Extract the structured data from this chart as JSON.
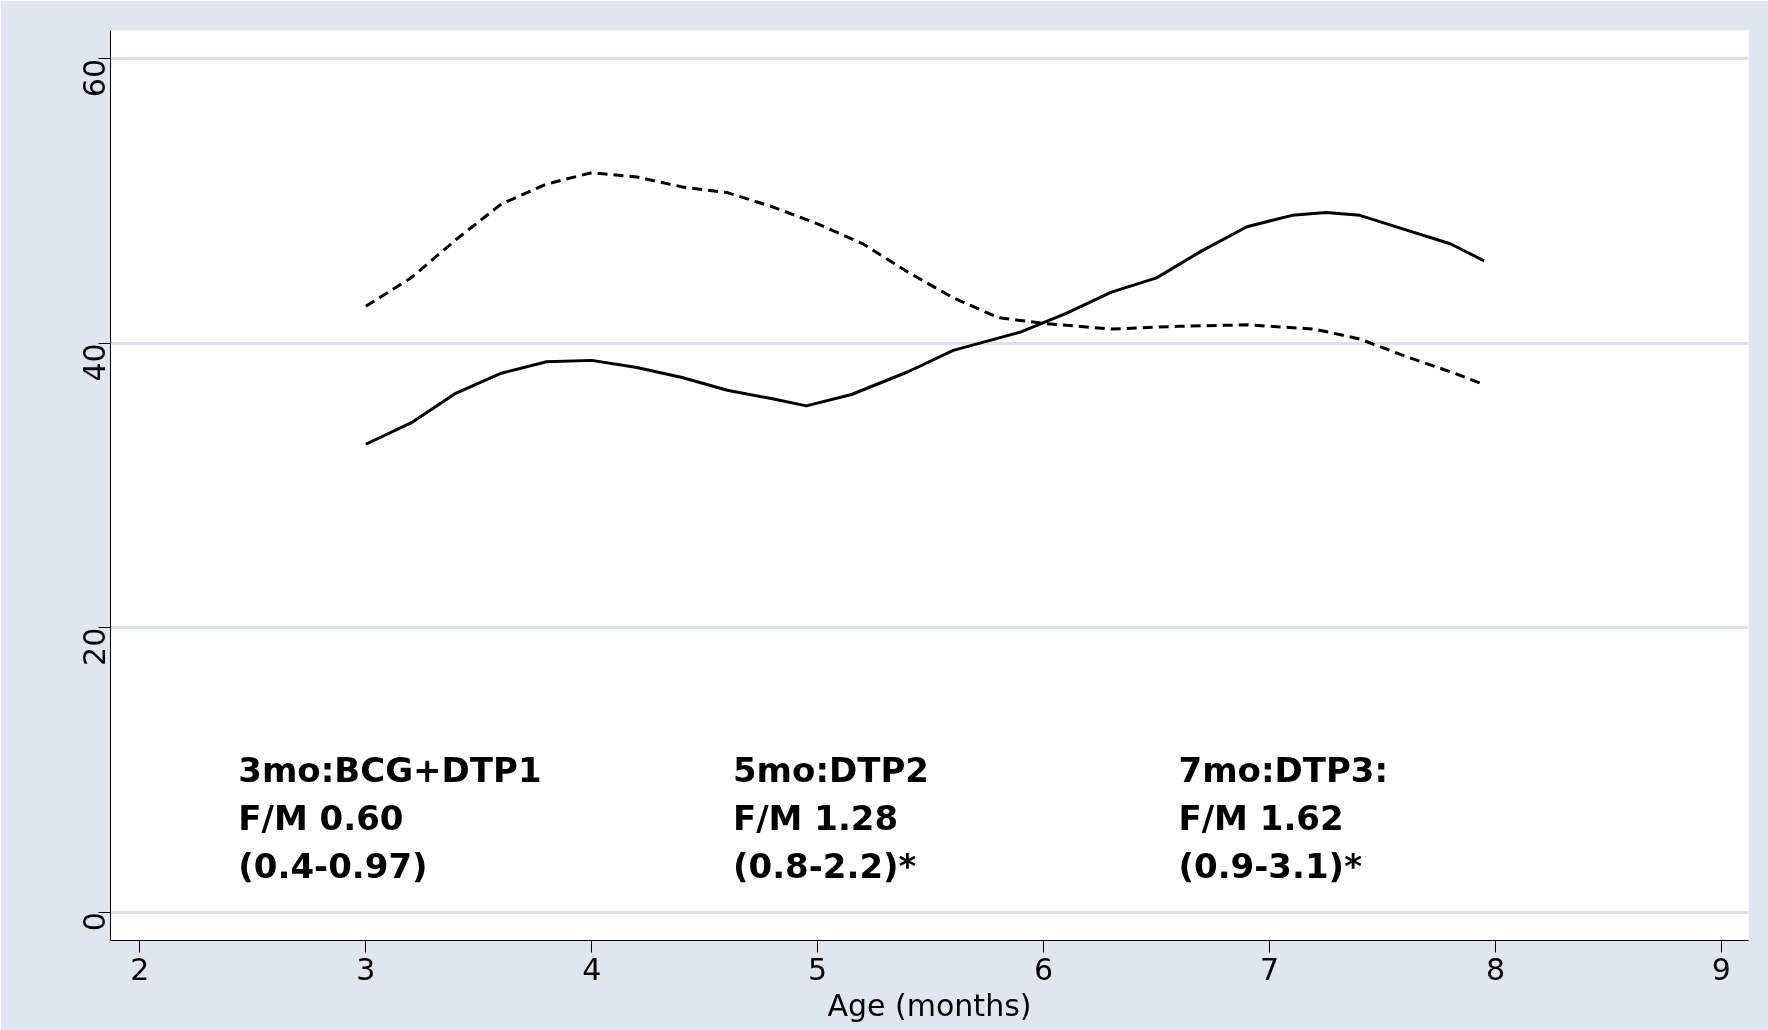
{
  "chart_data": {
    "type": "line",
    "xlabel": "Age (months)",
    "xlim": [
      1.87,
      9.12
    ],
    "ylim": [
      -2,
      62
    ],
    "xticks": [
      2,
      3,
      4,
      5,
      6,
      7,
      8,
      9
    ],
    "yticks": [
      0,
      20,
      40,
      60
    ],
    "grid": "y",
    "marker": "none",
    "series": [
      {
        "color": "#000000",
        "line_style": "solid",
        "x": [
          3.0,
          3.2,
          3.4,
          3.6,
          3.8,
          4.0,
          4.2,
          4.4,
          4.6,
          4.8,
          4.95,
          5.15,
          5.4,
          5.6,
          5.9,
          6.1,
          6.3,
          6.5,
          6.7,
          6.9,
          7.1,
          7.25,
          7.4,
          7.6,
          7.8,
          7.95
        ],
        "values": [
          32.9,
          34.4,
          36.5,
          37.9,
          38.7,
          38.8,
          38.3,
          37.6,
          36.7,
          36.1,
          35.6,
          36.4,
          38.0,
          39.5,
          40.8,
          42.1,
          43.6,
          44.6,
          46.5,
          48.2,
          49.0,
          49.2,
          49.0,
          48.0,
          47.0,
          45.8
        ]
      },
      {
        "color": "#000000",
        "line_style": "dashed",
        "x": [
          3.0,
          3.2,
          3.4,
          3.6,
          3.8,
          4.0,
          4.2,
          4.4,
          4.6,
          4.8,
          5.0,
          5.2,
          5.4,
          5.6,
          5.8,
          6.0,
          6.3,
          6.6,
          6.9,
          7.2,
          7.4,
          7.6,
          7.8,
          7.95
        ],
        "values": [
          42.6,
          44.6,
          47.3,
          49.8,
          51.2,
          52.0,
          51.7,
          51.0,
          50.6,
          49.6,
          48.4,
          47.0,
          45.0,
          43.2,
          41.8,
          41.4,
          41.0,
          41.2,
          41.3,
          41.0,
          40.3,
          39.1,
          38.0,
          37.1
        ]
      }
    ],
    "annotations": [
      "3mo:BCG+DTP1\nF/M 0.60\n(0.4-0.97)",
      "5mo:DTP2\nF/M 1.28\n(0.8-2.2)*",
      "7mo:DTP3:\nF/M 1.62\n(0.9-3.1)*"
    ]
  }
}
